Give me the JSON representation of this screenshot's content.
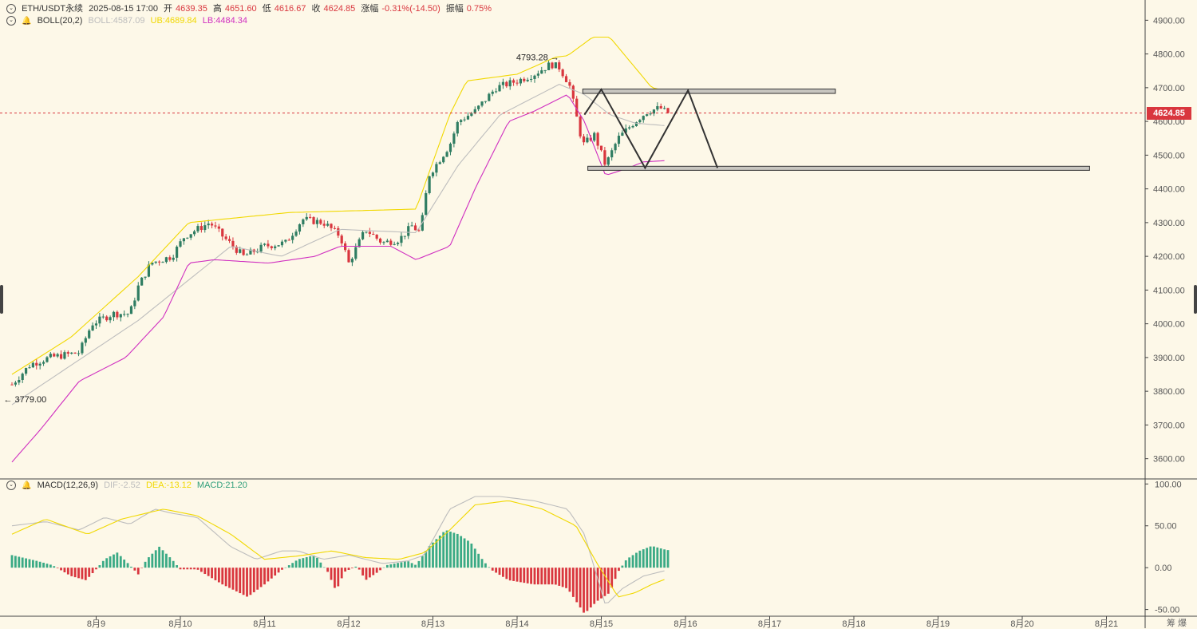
{
  "header": {
    "symbol": "ETH/USDT永续",
    "datetime": "2025-08-15 17:00",
    "open_label": "开",
    "open": "4639.35",
    "high_label": "高",
    "high": "4651.60",
    "low_label": "低",
    "low": "4616.67",
    "close_label": "收",
    "close": "4624.85",
    "change_label": "涨幅",
    "change": "-0.31%(-14.50)",
    "amplitude_label": "振幅",
    "amplitude": "0.75%"
  },
  "boll_legend": {
    "name": "BOLL(20,2)",
    "boll": "BOLL:4587.09",
    "ub": "UB:4689.84",
    "lb": "LB:4484.34"
  },
  "macd_legend": {
    "name": "MACD(12,26,9)",
    "dif": "DIF:-2.52",
    "dea": "DEA:-13.12",
    "macd": "MACD:21.20"
  },
  "current_price_tag": "4624.85",
  "corner_text": "筹 爆",
  "colors": {
    "background": "#fdf8e8",
    "up": "#2f7d62",
    "down": "#d9363e",
    "boll_mid": "#bdbdbd",
    "boll_upper": "#f1d800",
    "boll_lower": "#d02fc0",
    "macd_pos": "#3aaa85",
    "macd_neg": "#d9363e",
    "dif": "#bdbdbd",
    "dea": "#f1d800"
  },
  "chart_data": [
    {
      "type": "candlestick",
      "title": "ETH/USDT永续 1h",
      "x_ticks": [
        "8月9",
        "8月10",
        "8月11",
        "8月12",
        "8月13",
        "8月14",
        "8月15",
        "8月16",
        "8月17",
        "8月18",
        "8月19",
        "8月20",
        "8月21"
      ],
      "y_ticks": [
        3600,
        3700,
        3800,
        3900,
        4000,
        4100,
        4200,
        4300,
        4400,
        4500,
        4600,
        4700,
        4800,
        4900
      ],
      "ylim": [
        3540,
        4960
      ],
      "current_price": 4624.85,
      "annotations": [
        {
          "text": "4793.28",
          "price": 4793.28,
          "arrow": "right"
        },
        {
          "text": "3779.00",
          "price": 3779.0,
          "arrow": "left"
        }
      ],
      "zones": [
        {
          "name": "resistance",
          "day_start": 6.78,
          "day_end": 9.78,
          "top": 4696,
          "bottom": 4683
        },
        {
          "name": "support",
          "day_start": 6.84,
          "day_end": 12.8,
          "top": 4467,
          "bottom": 4455
        }
      ],
      "projection": [
        [
          6.8,
          4620
        ],
        [
          7.0,
          4695
        ],
        [
          7.52,
          4462
        ],
        [
          8.03,
          4692
        ],
        [
          8.38,
          4462
        ]
      ],
      "series": [
        {
          "name": "K",
          "anchors": [
            [
              0.0,
              3820
            ],
            [
              0.22,
              3880
            ],
            [
              0.45,
              3900
            ],
            [
              0.8,
              3915
            ],
            [
              0.95,
              4000
            ],
            [
              1.2,
              4030
            ],
            [
              1.4,
              4030
            ],
            [
              1.5,
              4110
            ],
            [
              1.65,
              4180
            ],
            [
              1.9,
              4200
            ],
            [
              2.05,
              4260
            ],
            [
              2.35,
              4300
            ],
            [
              2.5,
              4260
            ],
            [
              2.75,
              4200
            ],
            [
              3.0,
              4230
            ],
            [
              3.25,
              4240
            ],
            [
              3.45,
              4310
            ],
            [
              3.7,
              4300
            ],
            [
              3.9,
              4260
            ],
            [
              4.0,
              4180
            ],
            [
              4.2,
              4280
            ],
            [
              4.4,
              4240
            ],
            [
              4.6,
              4250
            ],
            [
              4.75,
              4290
            ],
            [
              4.85,
              4270
            ],
            [
              4.95,
              4440
            ],
            [
              5.2,
              4530
            ],
            [
              5.3,
              4600
            ],
            [
              5.5,
              4630
            ],
            [
              5.75,
              4700
            ],
            [
              6.0,
              4720
            ],
            [
              6.2,
              4740
            ],
            [
              6.4,
              4770
            ],
            [
              6.5,
              4760
            ],
            [
              6.62,
              4710
            ],
            [
              6.7,
              4620
            ],
            [
              6.78,
              4530
            ],
            [
              6.92,
              4560
            ],
            [
              7.05,
              4470
            ],
            [
              7.2,
              4550
            ],
            [
              7.4,
              4600
            ],
            [
              7.55,
              4630
            ],
            [
              7.7,
              4640
            ],
            [
              7.78,
              4625
            ]
          ]
        },
        {
          "name": "BOLL",
          "points": [
            [
              0.0,
              3760
            ],
            [
              1.5,
              4010
            ],
            [
              2.6,
              4230
            ],
            [
              3.2,
              4200
            ],
            [
              3.9,
              4280
            ],
            [
              4.8,
              4270
            ],
            [
              5.3,
              4470
            ],
            [
              5.8,
              4620
            ],
            [
              6.5,
              4710
            ],
            [
              6.8,
              4680
            ],
            [
              7.1,
              4620
            ],
            [
              7.4,
              4595
            ],
            [
              7.78,
              4587
            ]
          ]
        },
        {
          "name": "UB",
          "points": [
            [
              0.0,
              3850
            ],
            [
              0.7,
              3960
            ],
            [
              1.5,
              4140
            ],
            [
              2.1,
              4300
            ],
            [
              3.3,
              4330
            ],
            [
              4.8,
              4340
            ],
            [
              5.2,
              4620
            ],
            [
              5.4,
              4720
            ],
            [
              6.0,
              4740
            ],
            [
              6.45,
              4790
            ],
            [
              6.6,
              4795
            ],
            [
              6.9,
              4850
            ],
            [
              7.1,
              4850
            ],
            [
              7.4,
              4760
            ],
            [
              7.6,
              4700
            ],
            [
              7.78,
              4690
            ]
          ]
        },
        {
          "name": "LB",
          "points": [
            [
              0.0,
              3590
            ],
            [
              0.35,
              3690
            ],
            [
              0.8,
              3830
            ],
            [
              1.35,
              3900
            ],
            [
              1.8,
              4020
            ],
            [
              2.1,
              4180
            ],
            [
              2.4,
              4190
            ],
            [
              3.05,
              4180
            ],
            [
              3.6,
              4200
            ],
            [
              3.9,
              4230
            ],
            [
              4.5,
              4230
            ],
            [
              4.8,
              4190
            ],
            [
              5.2,
              4230
            ],
            [
              5.5,
              4400
            ],
            [
              5.9,
              4600
            ],
            [
              6.2,
              4630
            ],
            [
              6.6,
              4680
            ],
            [
              6.8,
              4600
            ],
            [
              7.05,
              4440
            ],
            [
              7.3,
              4460
            ],
            [
              7.5,
              4480
            ],
            [
              7.78,
              4484
            ]
          ]
        }
      ]
    },
    {
      "type": "bar",
      "title": "MACD(12,26,9)",
      "y_ticks": [
        -50.0,
        0.0,
        50.0,
        100.0
      ],
      "ylim": [
        -58,
        106
      ],
      "series": [
        {
          "name": "MACD",
          "anchors": [
            [
              0.0,
              15
            ],
            [
              0.3,
              8
            ],
            [
              0.48,
              3
            ],
            [
              0.7,
              -10
            ],
            [
              0.88,
              -15
            ],
            [
              1.0,
              -2
            ],
            [
              1.1,
              10
            ],
            [
              1.25,
              18
            ],
            [
              1.4,
              3
            ],
            [
              1.5,
              -8
            ],
            [
              1.6,
              10
            ],
            [
              1.75,
              25
            ],
            [
              1.9,
              10
            ],
            [
              2.0,
              -2
            ],
            [
              2.2,
              -2
            ],
            [
              2.5,
              -20
            ],
            [
              2.8,
              -35
            ],
            [
              3.0,
              -20
            ],
            [
              3.2,
              -3
            ],
            [
              3.4,
              10
            ],
            [
              3.6,
              15
            ],
            [
              3.75,
              -5
            ],
            [
              3.85,
              -28
            ],
            [
              3.95,
              -5
            ],
            [
              4.1,
              2
            ],
            [
              4.2,
              -15
            ],
            [
              4.35,
              -5
            ],
            [
              4.45,
              3
            ],
            [
              4.7,
              8
            ],
            [
              4.8,
              3
            ],
            [
              4.95,
              25
            ],
            [
              5.15,
              45
            ],
            [
              5.3,
              40
            ],
            [
              5.45,
              30
            ],
            [
              5.6,
              8
            ],
            [
              5.7,
              -3
            ],
            [
              5.9,
              -15
            ],
            [
              6.2,
              -20
            ],
            [
              6.45,
              -20
            ],
            [
              6.6,
              -25
            ],
            [
              6.8,
              -55
            ],
            [
              6.95,
              -40
            ],
            [
              7.1,
              -30
            ],
            [
              7.2,
              -5
            ],
            [
              7.3,
              10
            ],
            [
              7.45,
              20
            ],
            [
              7.6,
              26
            ],
            [
              7.78,
              21
            ]
          ]
        },
        {
          "name": "DIF",
          "points": [
            [
              0.0,
              50
            ],
            [
              0.4,
              55
            ],
            [
              0.8,
              45
            ],
            [
              1.1,
              60
            ],
            [
              1.4,
              52
            ],
            [
              1.7,
              70
            ],
            [
              1.9,
              65
            ],
            [
              2.2,
              60
            ],
            [
              2.6,
              25
            ],
            [
              2.9,
              10
            ],
            [
              3.2,
              20
            ],
            [
              3.4,
              20
            ],
            [
              3.7,
              10
            ],
            [
              4.0,
              15
            ],
            [
              4.4,
              5
            ],
            [
              4.7,
              8
            ],
            [
              4.9,
              15
            ],
            [
              5.2,
              70
            ],
            [
              5.5,
              85
            ],
            [
              5.8,
              85
            ],
            [
              6.2,
              80
            ],
            [
              6.6,
              70
            ],
            [
              6.8,
              40
            ],
            [
              7.05,
              -45
            ],
            [
              7.25,
              -25
            ],
            [
              7.5,
              -10
            ],
            [
              7.78,
              -3
            ]
          ]
        },
        {
          "name": "DEA",
          "points": [
            [
              0.0,
              40
            ],
            [
              0.4,
              58
            ],
            [
              0.9,
              40
            ],
            [
              1.3,
              58
            ],
            [
              1.8,
              70
            ],
            [
              2.2,
              62
            ],
            [
              2.6,
              40
            ],
            [
              3.0,
              10
            ],
            [
              3.4,
              14
            ],
            [
              3.8,
              20
            ],
            [
              4.2,
              12
            ],
            [
              4.6,
              10
            ],
            [
              4.9,
              18
            ],
            [
              5.2,
              45
            ],
            [
              5.5,
              75
            ],
            [
              5.9,
              80
            ],
            [
              6.3,
              70
            ],
            [
              6.7,
              50
            ],
            [
              6.95,
              5
            ],
            [
              7.2,
              -35
            ],
            [
              7.4,
              -30
            ],
            [
              7.6,
              -20
            ],
            [
              7.78,
              -13
            ]
          ]
        }
      ]
    }
  ]
}
